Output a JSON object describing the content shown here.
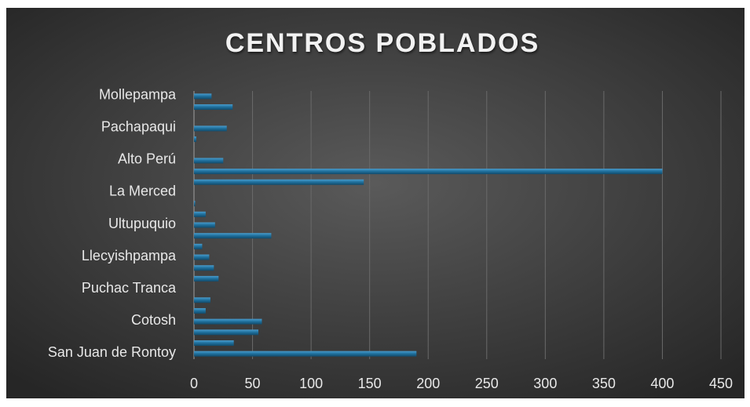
{
  "chart_data": {
    "type": "bar",
    "orientation": "horizontal",
    "title": "CENTROS POBLADOS",
    "categories": [
      "San Juan de Rontoy",
      null,
      null,
      "Cotosh",
      null,
      null,
      "Puchac Tranca",
      null,
      null,
      "Llecyishpampa",
      null,
      null,
      "Ultupuquio",
      null,
      null,
      "La Merced",
      null,
      null,
      "Alto Perú",
      null,
      null,
      "Pachapaqui",
      null,
      null,
      "Mollepampa"
    ],
    "values": [
      190,
      34,
      55,
      58,
      10,
      14,
      0,
      21,
      17,
      13,
      7,
      66,
      18,
      10,
      1,
      0,
      145,
      400,
      25,
      0,
      2,
      28,
      0,
      33,
      15
    ],
    "color": "#1e6f9c",
    "xlim": [
      0,
      450
    ],
    "xticks": [
      0,
      50,
      100,
      150,
      200,
      250,
      300,
      350,
      400,
      450
    ],
    "grid": true
  }
}
